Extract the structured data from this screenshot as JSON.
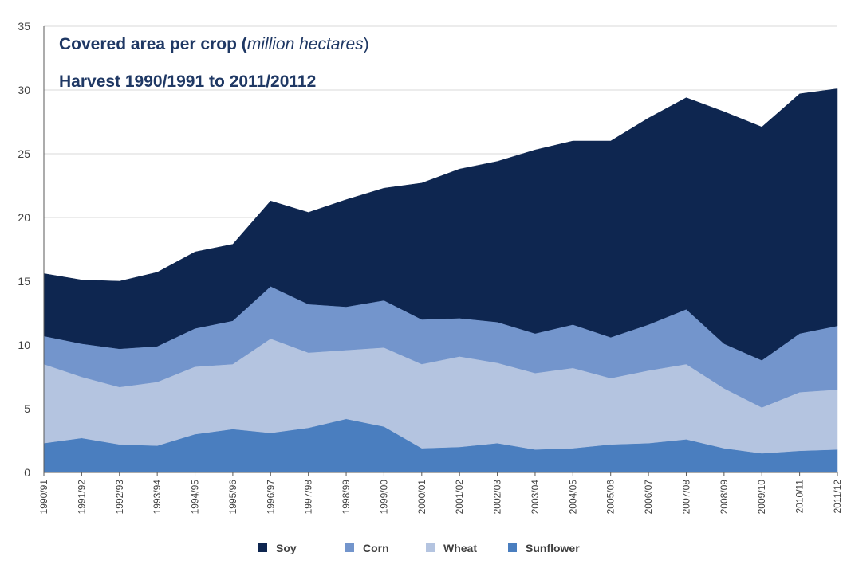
{
  "chart_data": {
    "type": "area",
    "stacked": true,
    "title_line1": {
      "main": "Covered area per crop (",
      "italic": "million hectares",
      "end": ")"
    },
    "title_line2": "Harvest 1990/1991 to 2011/20112",
    "xlabel": "",
    "ylabel": "",
    "ylim": [
      0,
      35
    ],
    "yticks": [
      0,
      5,
      10,
      15,
      20,
      25,
      30,
      35
    ],
    "grid": true,
    "legend_position": "bottom",
    "categories": [
      "1990/91",
      "1991/92",
      "1992/93",
      "1993/94",
      "1994/95",
      "1995/96",
      "1996/97",
      "1997/98",
      "1998/99",
      "1999/00",
      "2000/01",
      "2001/02",
      "2002/03",
      "2003/04",
      "2004/05",
      "2005/06",
      "2006/07",
      "2007/08",
      "2008/09",
      "2009/10",
      "2010/11",
      "2011/12"
    ],
    "series": [
      {
        "name": "Sunflower",
        "color": "#4a7ebf",
        "values": [
          2.3,
          2.7,
          2.2,
          2.1,
          3.0,
          3.4,
          3.1,
          3.5,
          4.2,
          3.6,
          1.9,
          2.0,
          2.3,
          1.8,
          1.9,
          2.2,
          2.3,
          2.6,
          1.9,
          1.5,
          1.7,
          1.8
        ]
      },
      {
        "name": "Wheat",
        "color": "#b4c4e0",
        "values": [
          6.2,
          4.8,
          4.5,
          5.0,
          5.3,
          5.1,
          7.4,
          5.9,
          5.4,
          6.2,
          6.6,
          7.1,
          6.3,
          6.0,
          6.3,
          5.2,
          5.7,
          5.9,
          4.7,
          3.6,
          4.6,
          4.7
        ]
      },
      {
        "name": "Corn",
        "color": "#7395cc",
        "values": [
          2.2,
          2.6,
          3.0,
          2.8,
          3.0,
          3.4,
          4.1,
          3.8,
          3.4,
          3.7,
          3.5,
          3.0,
          3.2,
          3.1,
          3.4,
          3.2,
          3.6,
          4.3,
          3.5,
          3.7,
          4.6,
          5.0
        ]
      },
      {
        "name": "Soy",
        "color": "#0e2650",
        "values": [
          4.9,
          5.0,
          5.3,
          5.8,
          6.0,
          6.0,
          6.7,
          7.2,
          8.4,
          8.8,
          10.7,
          11.7,
          12.6,
          14.4,
          14.4,
          15.4,
          16.2,
          16.6,
          18.2,
          18.3,
          18.8,
          18.6
        ]
      }
    ],
    "legend": [
      {
        "name": "Soy",
        "color": "#0e2650"
      },
      {
        "name": "Corn",
        "color": "#7395cc"
      },
      {
        "name": "Wheat",
        "color": "#b4c4e0"
      },
      {
        "name": "Sunflower",
        "color": "#4a7ebf"
      }
    ]
  }
}
